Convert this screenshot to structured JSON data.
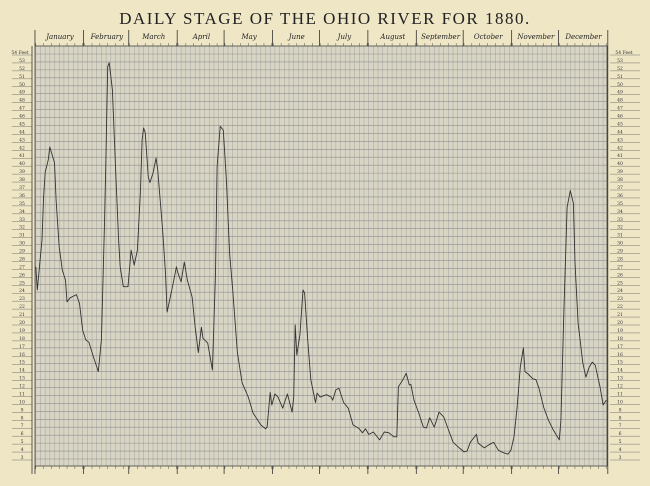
{
  "chart_data": {
    "type": "line",
    "title": "DAILY STAGE OF THE OHIO RIVER FOR 1880.",
    "months": [
      "January",
      "February",
      "March",
      "April",
      "May",
      "June",
      "July",
      "August",
      "September",
      "October",
      "November",
      "December"
    ],
    "month_days": [
      31,
      29,
      31,
      30,
      31,
      30,
      31,
      31,
      30,
      31,
      30,
      31
    ],
    "ylabel_top_left": "54 Feet",
    "ylabel_top_right": "54 Feet",
    "xlim": [
      1,
      366
    ],
    "ylim": [
      3,
      54
    ],
    "grid": true,
    "colors": {
      "paper": "#efe6c6",
      "plot": "#d8d5c4",
      "grid": "#8f8f8f",
      "line": "#333333"
    },
    "x_unit": "day of year",
    "y_unit": "feet",
    "points": [
      [
        1,
        27.2
      ],
      [
        2,
        24.3
      ],
      [
        5,
        30.6
      ],
      [
        6,
        36.0
      ],
      [
        7,
        39.1
      ],
      [
        9,
        40.7
      ],
      [
        10,
        42.3
      ],
      [
        13,
        40.3
      ],
      [
        14,
        35.6
      ],
      [
        16,
        29.7
      ],
      [
        18,
        26.8
      ],
      [
        20,
        25.5
      ],
      [
        21,
        22.8
      ],
      [
        23,
        23.3
      ],
      [
        27,
        23.7
      ],
      [
        29,
        22.6
      ],
      [
        31,
        19.2
      ],
      [
        33,
        18.0
      ],
      [
        35,
        17.7
      ],
      [
        38,
        15.8
      ],
      [
        41,
        14.0
      ],
      [
        43,
        18.0
      ],
      [
        45,
        32.7
      ],
      [
        46,
        41.9
      ],
      [
        47,
        52.4
      ],
      [
        48,
        52.9
      ],
      [
        50,
        49.5
      ],
      [
        52,
        39.8
      ],
      [
        54,
        30.6
      ],
      [
        55,
        27.2
      ],
      [
        57,
        24.7
      ],
      [
        60,
        24.7
      ],
      [
        62,
        29.3
      ],
      [
        64,
        27.4
      ],
      [
        66,
        29.3
      ],
      [
        68,
        36.9
      ],
      [
        69,
        43.2
      ],
      [
        70,
        44.7
      ],
      [
        71,
        44.1
      ],
      [
        73,
        38.5
      ],
      [
        74,
        37.8
      ],
      [
        76,
        39.0
      ],
      [
        78,
        40.9
      ],
      [
        79,
        39.4
      ],
      [
        82,
        32.2
      ],
      [
        84,
        26.4
      ],
      [
        85,
        21.5
      ],
      [
        89,
        25.2
      ],
      [
        91,
        27.2
      ],
      [
        92,
        26.4
      ],
      [
        94,
        25.3
      ],
      [
        96,
        27.8
      ],
      [
        98,
        25.5
      ],
      [
        101,
        23.4
      ],
      [
        103,
        19.6
      ],
      [
        105,
        16.4
      ],
      [
        107,
        19.6
      ],
      [
        108,
        18.2
      ],
      [
        111,
        17.6
      ],
      [
        114,
        14.2
      ],
      [
        116,
        26.4
      ],
      [
        117,
        39.8
      ],
      [
        119,
        44.9
      ],
      [
        121,
        44.4
      ],
      [
        123,
        38.1
      ],
      [
        125,
        28.9
      ],
      [
        127,
        24.3
      ],
      [
        130,
        16.4
      ],
      [
        133,
        12.6
      ],
      [
        137,
        10.8
      ],
      [
        140,
        8.8
      ],
      [
        145,
        7.3
      ],
      [
        148,
        6.8
      ],
      [
        149,
        7.0
      ],
      [
        151,
        11.4
      ],
      [
        152,
        9.8
      ],
      [
        154,
        11.2
      ],
      [
        156,
        10.8
      ],
      [
        159,
        9.4
      ],
      [
        162,
        11.2
      ],
      [
        165,
        8.9
      ],
      [
        166,
        10.8
      ],
      [
        167,
        19.9
      ],
      [
        168,
        16.1
      ],
      [
        170,
        18.6
      ],
      [
        172,
        24.3
      ],
      [
        173,
        23.9
      ],
      [
        175,
        18.0
      ],
      [
        177,
        13.0
      ],
      [
        180,
        10.1
      ],
      [
        181,
        11.3
      ],
      [
        183,
        10.8
      ],
      [
        187,
        11.1
      ],
      [
        190,
        10.8
      ],
      [
        191,
        10.4
      ],
      [
        193,
        11.7
      ],
      [
        195,
        11.9
      ],
      [
        196,
        11.3
      ],
      [
        198,
        10.1
      ],
      [
        201,
        9.4
      ],
      [
        204,
        7.3
      ],
      [
        208,
        6.8
      ],
      [
        210,
        6.3
      ],
      [
        212,
        6.8
      ],
      [
        214,
        6.1
      ],
      [
        217,
        6.4
      ],
      [
        219,
        5.9
      ],
      [
        221,
        5.4
      ],
      [
        224,
        6.4
      ],
      [
        227,
        6.3
      ],
      [
        230,
        5.8
      ],
      [
        232,
        5.8
      ],
      [
        233,
        12.1
      ],
      [
        236,
        13.0
      ],
      [
        238,
        13.8
      ],
      [
        240,
        12.3
      ],
      [
        241,
        12.4
      ],
      [
        243,
        10.4
      ],
      [
        246,
        8.8
      ],
      [
        249,
        7.0
      ],
      [
        251,
        6.9
      ],
      [
        253,
        8.2
      ],
      [
        256,
        7.0
      ],
      [
        259,
        8.9
      ],
      [
        262,
        8.3
      ],
      [
        265,
        6.7
      ],
      [
        268,
        5.1
      ],
      [
        272,
        4.4
      ],
      [
        275,
        3.9
      ],
      [
        277,
        4.0
      ],
      [
        279,
        5.1
      ],
      [
        283,
        6.1
      ],
      [
        284,
        5.0
      ],
      [
        288,
        4.4
      ],
      [
        291,
        4.8
      ],
      [
        294,
        5.1
      ],
      [
        297,
        4.1
      ],
      [
        300,
        3.8
      ],
      [
        303,
        3.6
      ],
      [
        305,
        4.1
      ],
      [
        307,
        5.8
      ],
      [
        309,
        9.5
      ],
      [
        311,
        14.6
      ],
      [
        313,
        17.0
      ],
      [
        314,
        14.0
      ],
      [
        316,
        13.7
      ],
      [
        319,
        13.1
      ],
      [
        321,
        13.0
      ],
      [
        323,
        11.9
      ],
      [
        326,
        9.5
      ],
      [
        329,
        7.9
      ],
      [
        332,
        6.7
      ],
      [
        336,
        5.4
      ],
      [
        337,
        7.9
      ],
      [
        339,
        22.1
      ],
      [
        341,
        34.7
      ],
      [
        343,
        36.8
      ],
      [
        345,
        35.2
      ],
      [
        346,
        27.7
      ],
      [
        348,
        20.1
      ],
      [
        351,
        15.1
      ],
      [
        353,
        13.3
      ],
      [
        355,
        14.5
      ],
      [
        357,
        15.2
      ],
      [
        359,
        14.8
      ],
      [
        361,
        13.0
      ],
      [
        362,
        12.1
      ],
      [
        364,
        9.8
      ],
      [
        366,
        10.4
      ]
    ]
  }
}
